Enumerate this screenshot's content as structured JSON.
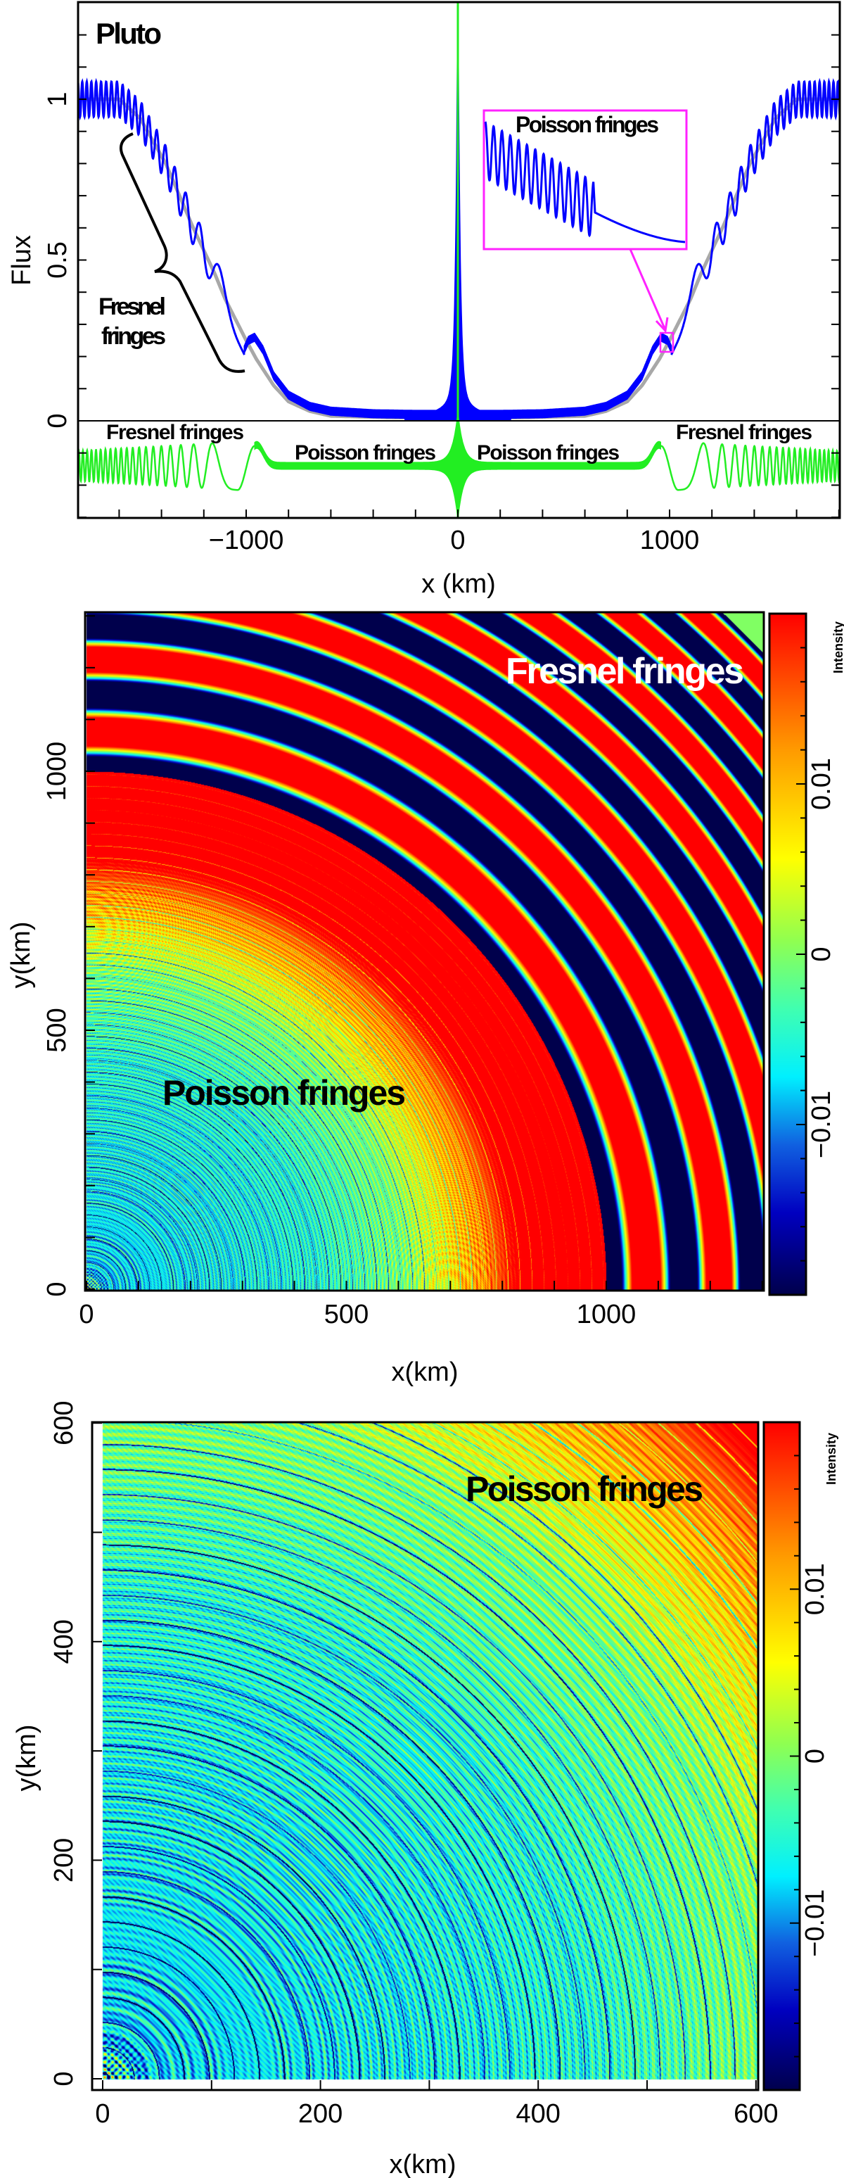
{
  "chart_data": [
    {
      "type": "line",
      "panel_label": "Pluto",
      "xlabel": "x (km)",
      "ylabel": "Flux",
      "xlim": [
        -1800,
        1800
      ],
      "ylim": [
        -0.3,
        1.3
      ],
      "xticks": [
        {
          "value": -1000,
          "label": "−1000"
        },
        {
          "value": 0,
          "label": "0"
        },
        {
          "value": 1000,
          "label": "1000"
        }
      ],
      "yticks": [
        {
          "value": 0,
          "label": "0"
        },
        {
          "value": 0.5,
          "label": "0.5"
        },
        {
          "value": 1,
          "label": "1"
        }
      ],
      "x_minor_step": 200,
      "y_minor_step": 0.1,
      "gray_curve": {
        "color": "#a8a8a8",
        "x": [
          0,
          300,
          600,
          700,
          800,
          870,
          950,
          1000,
          1100,
          1150,
          1250,
          1380,
          1500,
          1600,
          1800
        ],
        "y": [
          0.01,
          0.01,
          0.015,
          0.03,
          0.06,
          0.11,
          0.19,
          0.25,
          0.38,
          0.46,
          0.6,
          0.8,
          0.94,
          1.0,
          1.0
        ]
      },
      "blue_curve": {
        "color": "#0000ff",
        "center_x": [
          0,
          200,
          400,
          600,
          700,
          800,
          870,
          920,
          960,
          990,
          1010
        ],
        "center_y": [
          0.02,
          0.02,
          0.022,
          0.03,
          0.045,
          0.08,
          0.14,
          0.22,
          0.26,
          0.25,
          0.22
        ],
        "fringe_amplitude": 0.055
      },
      "green_curve": {
        "color": "#22ee22",
        "mean": -0.14,
        "fringe_amplitude": 0.075,
        "bump_peak_x": 950
      },
      "annotations": {
        "brace_label_line1": "Fresnel",
        "brace_label_line2": "fringes",
        "inset_label": "Poisson fringes",
        "inset_color": "#ff22ff",
        "green_left_fresnel": "Fresnel fringes",
        "green_left_poisson": "Poisson fringes",
        "green_right_poisson": "Poisson fringes",
        "green_right_fresnel": "Fresnel fringes"
      }
    },
    {
      "type": "heatmap",
      "xlabel": "x(km)",
      "ylabel": "y(km)",
      "xlim": [
        0,
        1300
      ],
      "ylim": [
        0,
        1300
      ],
      "xticks": [
        {
          "value": 0,
          "label": "0"
        },
        {
          "value": 500,
          "label": "500"
        },
        {
          "value": 1000,
          "label": "1000"
        }
      ],
      "yticks": [
        {
          "value": 0,
          "label": "0"
        },
        {
          "value": 500,
          "label": "500"
        },
        {
          "value": 1000,
          "label": "1000"
        }
      ],
      "minor_step": 100,
      "colorbar": {
        "label": "Intensity",
        "range": [
          -0.02,
          0.02
        ],
        "ticks": [
          {
            "value": -0.01,
            "label": "−0.01"
          },
          {
            "value": 0,
            "label": "0"
          },
          {
            "value": 0.01,
            "label": "0.01"
          }
        ]
      },
      "shadow_radius_km": 1000,
      "fresnel_ring_boundaries_km": [
        1000,
        1083,
        1151,
        1203,
        1245,
        1276
      ],
      "annotations": {
        "fresnel": "Fresnel fringes",
        "poisson": "Poisson fringes"
      }
    },
    {
      "type": "heatmap",
      "xlabel": "x(km)",
      "ylabel": "y(km)",
      "xlim": [
        0,
        600
      ],
      "ylim": [
        0,
        600
      ],
      "xticks": [
        {
          "value": 0,
          "label": "0"
        },
        {
          "value": 200,
          "label": "200"
        },
        {
          "value": 400,
          "label": "400"
        },
        {
          "value": 600,
          "label": "600"
        }
      ],
      "yticks": [
        {
          "value": 0,
          "label": "0"
        },
        {
          "value": 200,
          "label": "200"
        },
        {
          "value": 400,
          "label": "400"
        },
        {
          "value": 600,
          "label": "600"
        }
      ],
      "minor_step": 100,
      "colorbar": {
        "label": "Intensity",
        "range": [
          -0.02,
          0.02
        ],
        "ticks": [
          {
            "value": -0.01,
            "label": "−0.01"
          },
          {
            "value": 0,
            "label": "0"
          },
          {
            "value": 0.01,
            "label": "0.01"
          }
        ]
      },
      "annotations": {
        "poisson": "Poisson fringes"
      }
    }
  ],
  "colormap": [
    {
      "value": -0.02,
      "color": "#00004c"
    },
    {
      "value": -0.0152,
      "color": "#0000c0"
    },
    {
      "value": -0.0112,
      "color": "#1060e0"
    },
    {
      "value": -0.0072,
      "color": "#00f0ff"
    },
    {
      "value": -0.0032,
      "color": "#40ffb0"
    },
    {
      "value": 0.0008,
      "color": "#90ff50"
    },
    {
      "value": 0.0056,
      "color": "#ffff00"
    },
    {
      "value": 0.012,
      "color": "#ff9a00"
    },
    {
      "value": 0.02,
      "color": "#ff0000"
    }
  ]
}
